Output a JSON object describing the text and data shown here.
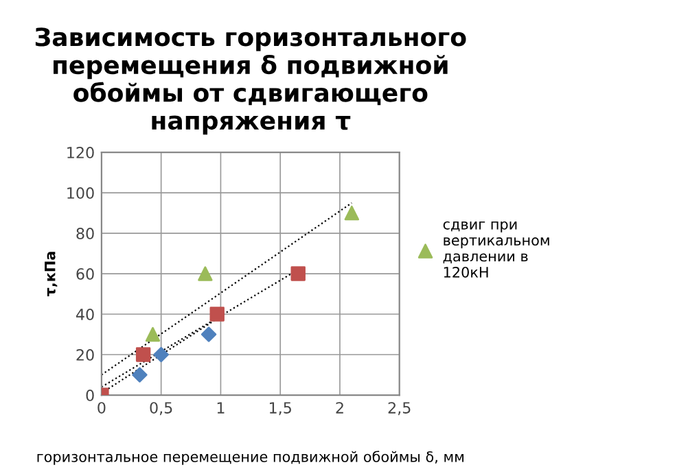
{
  "chart_data": {
    "type": "scatter",
    "title": "Зависимость горизонтального перемещения δ подвижной обоймы от сдвигающего напряжения τ",
    "xlabel": "горизонтальное перемещение подвижной обоймы δ, мм",
    "ylabel": "τ,кПа",
    "xlim": [
      0,
      2.5
    ],
    "xticks": [
      0,
      {
        "value": 0.5,
        "label": "0,5"
      },
      1,
      {
        "value": 1.5,
        "label": "1,5"
      },
      2,
      {
        "value": 2.5,
        "label": "2,5"
      }
    ],
    "ylim": [
      0,
      120
    ],
    "yticks": [
      0,
      20,
      40,
      60,
      80,
      100,
      120
    ],
    "grid": true,
    "legend": "right",
    "series": [
      {
        "color": "#4f81bd",
        "marker": "diamond",
        "x": [
          0.32,
          0.5,
          0.9
        ],
        "values": [
          10,
          20,
          30
        ]
      },
      {
        "color": "#c0504d",
        "marker": "square",
        "x": [
          0,
          0.35,
          0.97,
          1.65
        ],
        "values": [
          0,
          20,
          40,
          60
        ]
      },
      {
        "name": "сдвиг при вертикальном давлении в 120кН",
        "color": "#9bbb59",
        "marker": "triangle",
        "x": [
          0.43,
          0.87,
          2.1
        ],
        "values": [
          30,
          60,
          90
        ]
      },
      {
        "type": "line",
        "color": "#000000",
        "line_style": "dotted",
        "marker": "none",
        "x": [
          0,
          0.95
        ],
        "values": [
          1,
          37
        ]
      },
      {
        "type": "line",
        "color": "#000000",
        "line_style": "dotted",
        "marker": "none",
        "x": [
          0,
          1.65
        ],
        "values": [
          4,
          62
        ]
      },
      {
        "type": "line",
        "color": "#000000",
        "line_style": "dotted",
        "marker": "none",
        "x": [
          0,
          2.1
        ],
        "values": [
          10,
          95
        ]
      }
    ]
  }
}
